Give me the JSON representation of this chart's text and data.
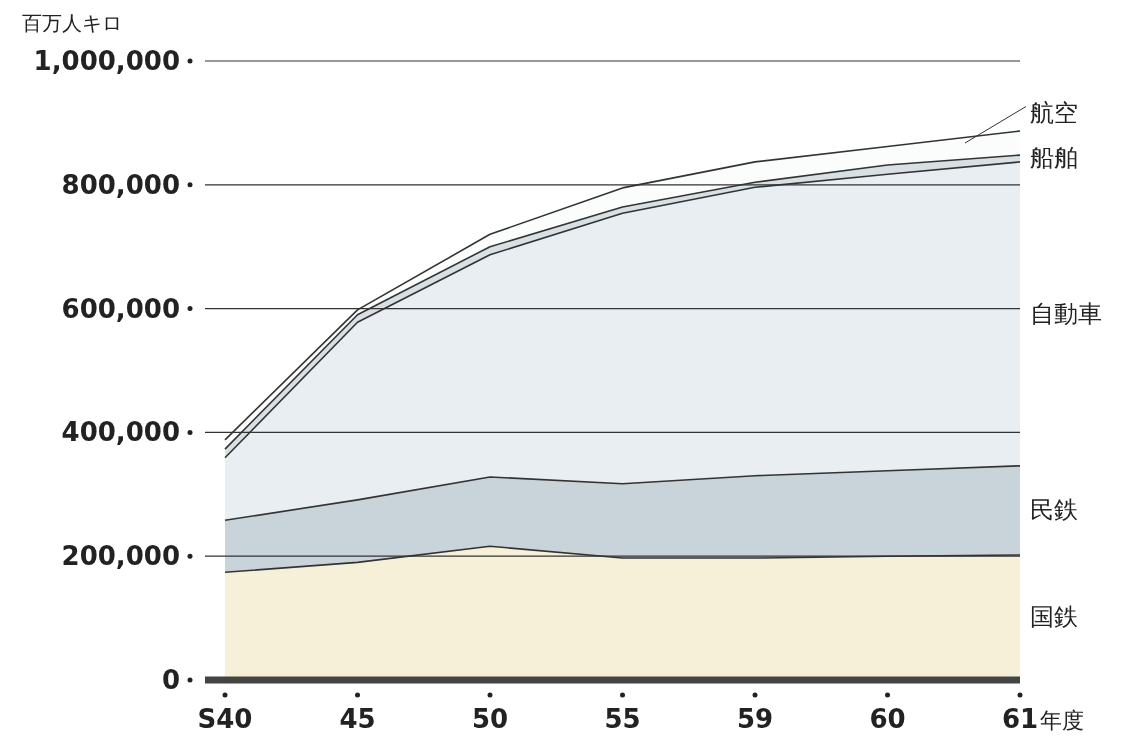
{
  "chart_data": {
    "type": "area",
    "stacked": true,
    "ylabel": "百万人キロ",
    "xlabel": "年度",
    "categories": [
      "S40",
      "45",
      "50",
      "55",
      "59",
      "60",
      "61"
    ],
    "ylim": [
      0,
      1000000
    ],
    "yticks": [
      {
        "value": 0,
        "label": "0"
      },
      {
        "value": 200000,
        "label": "200,000"
      },
      {
        "value": 400000,
        "label": "400,000"
      },
      {
        "value": 600000,
        "label": "600,000"
      },
      {
        "value": 800000,
        "label": "800,000"
      },
      {
        "value": 1000000,
        "label": "1,000,000"
      }
    ],
    "grid": "y",
    "legend": "right",
    "series": [
      {
        "name": "国鉄",
        "color": "#f7f0d8",
        "values": [
          174000,
          190000,
          216000,
          197000,
          197000,
          200000,
          202000
        ]
      },
      {
        "name": "民鉄",
        "color": "#c8d3da",
        "values": [
          84000,
          101000,
          112000,
          120000,
          133000,
          138000,
          144000
        ]
      },
      {
        "name": "自動車",
        "color": "#e8eef1",
        "values": [
          101000,
          287000,
          359000,
          437000,
          466000,
          479000,
          491000
        ]
      },
      {
        "name": "船舶",
        "color": "#d8e0e4",
        "values": [
          14000,
          12000,
          13000,
          10000,
          8000,
          15000,
          11000
        ]
      },
      {
        "name": "航空",
        "color": "#fbfcfc",
        "values": [
          15000,
          8000,
          20000,
          31000,
          33000,
          30000,
          39000
        ]
      }
    ]
  }
}
